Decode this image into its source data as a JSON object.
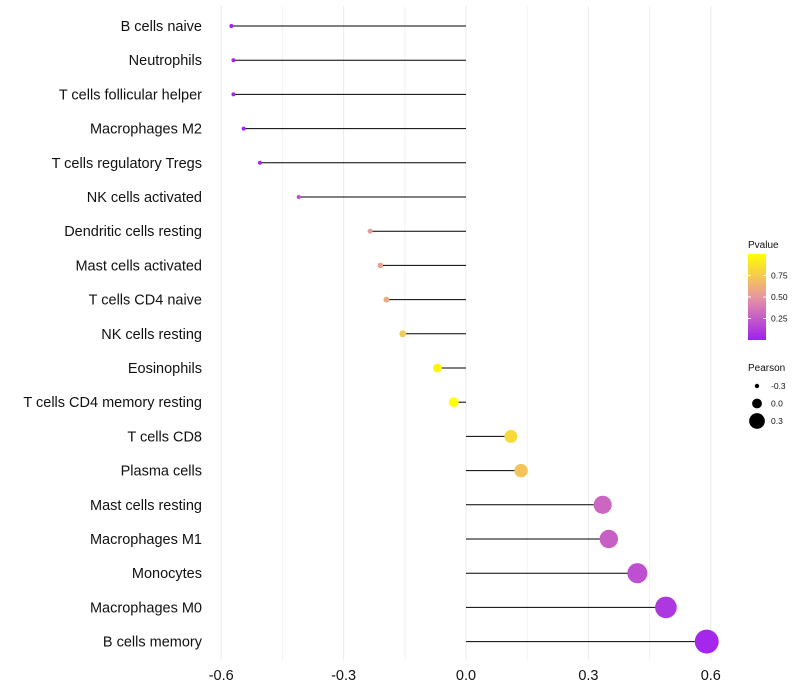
{
  "chart_data": {
    "type": "lollipop",
    "categories": [
      "B cells naive",
      "Neutrophils",
      "T cells follicular helper",
      "Macrophages M2",
      "T cells regulatory  Tregs ",
      "NK cells activated",
      "Dendritic cells resting",
      "Mast cells activated",
      "T cells CD4 naive",
      "NK cells resting",
      "Eosinophils",
      "T cells CD4 memory resting",
      "T cells CD8",
      "Plasma cells",
      "Mast cells resting",
      "Macrophages M1",
      "Monocytes",
      "Macrophages M0",
      "B cells memory"
    ],
    "pearson": [
      -0.575,
      -0.57,
      -0.57,
      -0.545,
      -0.505,
      -0.41,
      -0.235,
      -0.21,
      -0.195,
      -0.155,
      -0.07,
      -0.03,
      0.11,
      0.135,
      0.335,
      0.35,
      0.42,
      0.49,
      0.59
    ],
    "pvalue": [
      0.01,
      0.02,
      0.02,
      0.03,
      0.04,
      0.2,
      0.52,
      0.55,
      0.6,
      0.75,
      0.95,
      1.0,
      0.82,
      0.72,
      0.3,
      0.27,
      0.2,
      0.1,
      0.03
    ],
    "xlim": [
      -0.63,
      0.63
    ],
    "xticks": [
      "-0.6",
      "-0.3",
      "0.0",
      "0.3",
      "0.6"
    ],
    "xtick_values": [
      -0.6,
      -0.3,
      0.0,
      0.3,
      0.6
    ],
    "title": "",
    "xlabel": "",
    "ylabel": "",
    "grid": true,
    "legend_placement": "right",
    "color_legend": {
      "title": "Pvalue",
      "tick_labels": [
        "0.75",
        "0.50",
        "0.25"
      ],
      "tick_values": [
        0.75,
        0.5,
        0.25
      ],
      "range": [
        0.0,
        1.0
      ],
      "low_color": "#a020f0",
      "high_color": "#ffff00"
    },
    "size_legend": {
      "title": "Pearson",
      "labels": [
        "-0.3",
        "0.0",
        "0.3"
      ],
      "values": [
        -0.3,
        0.0,
        0.3
      ]
    }
  }
}
